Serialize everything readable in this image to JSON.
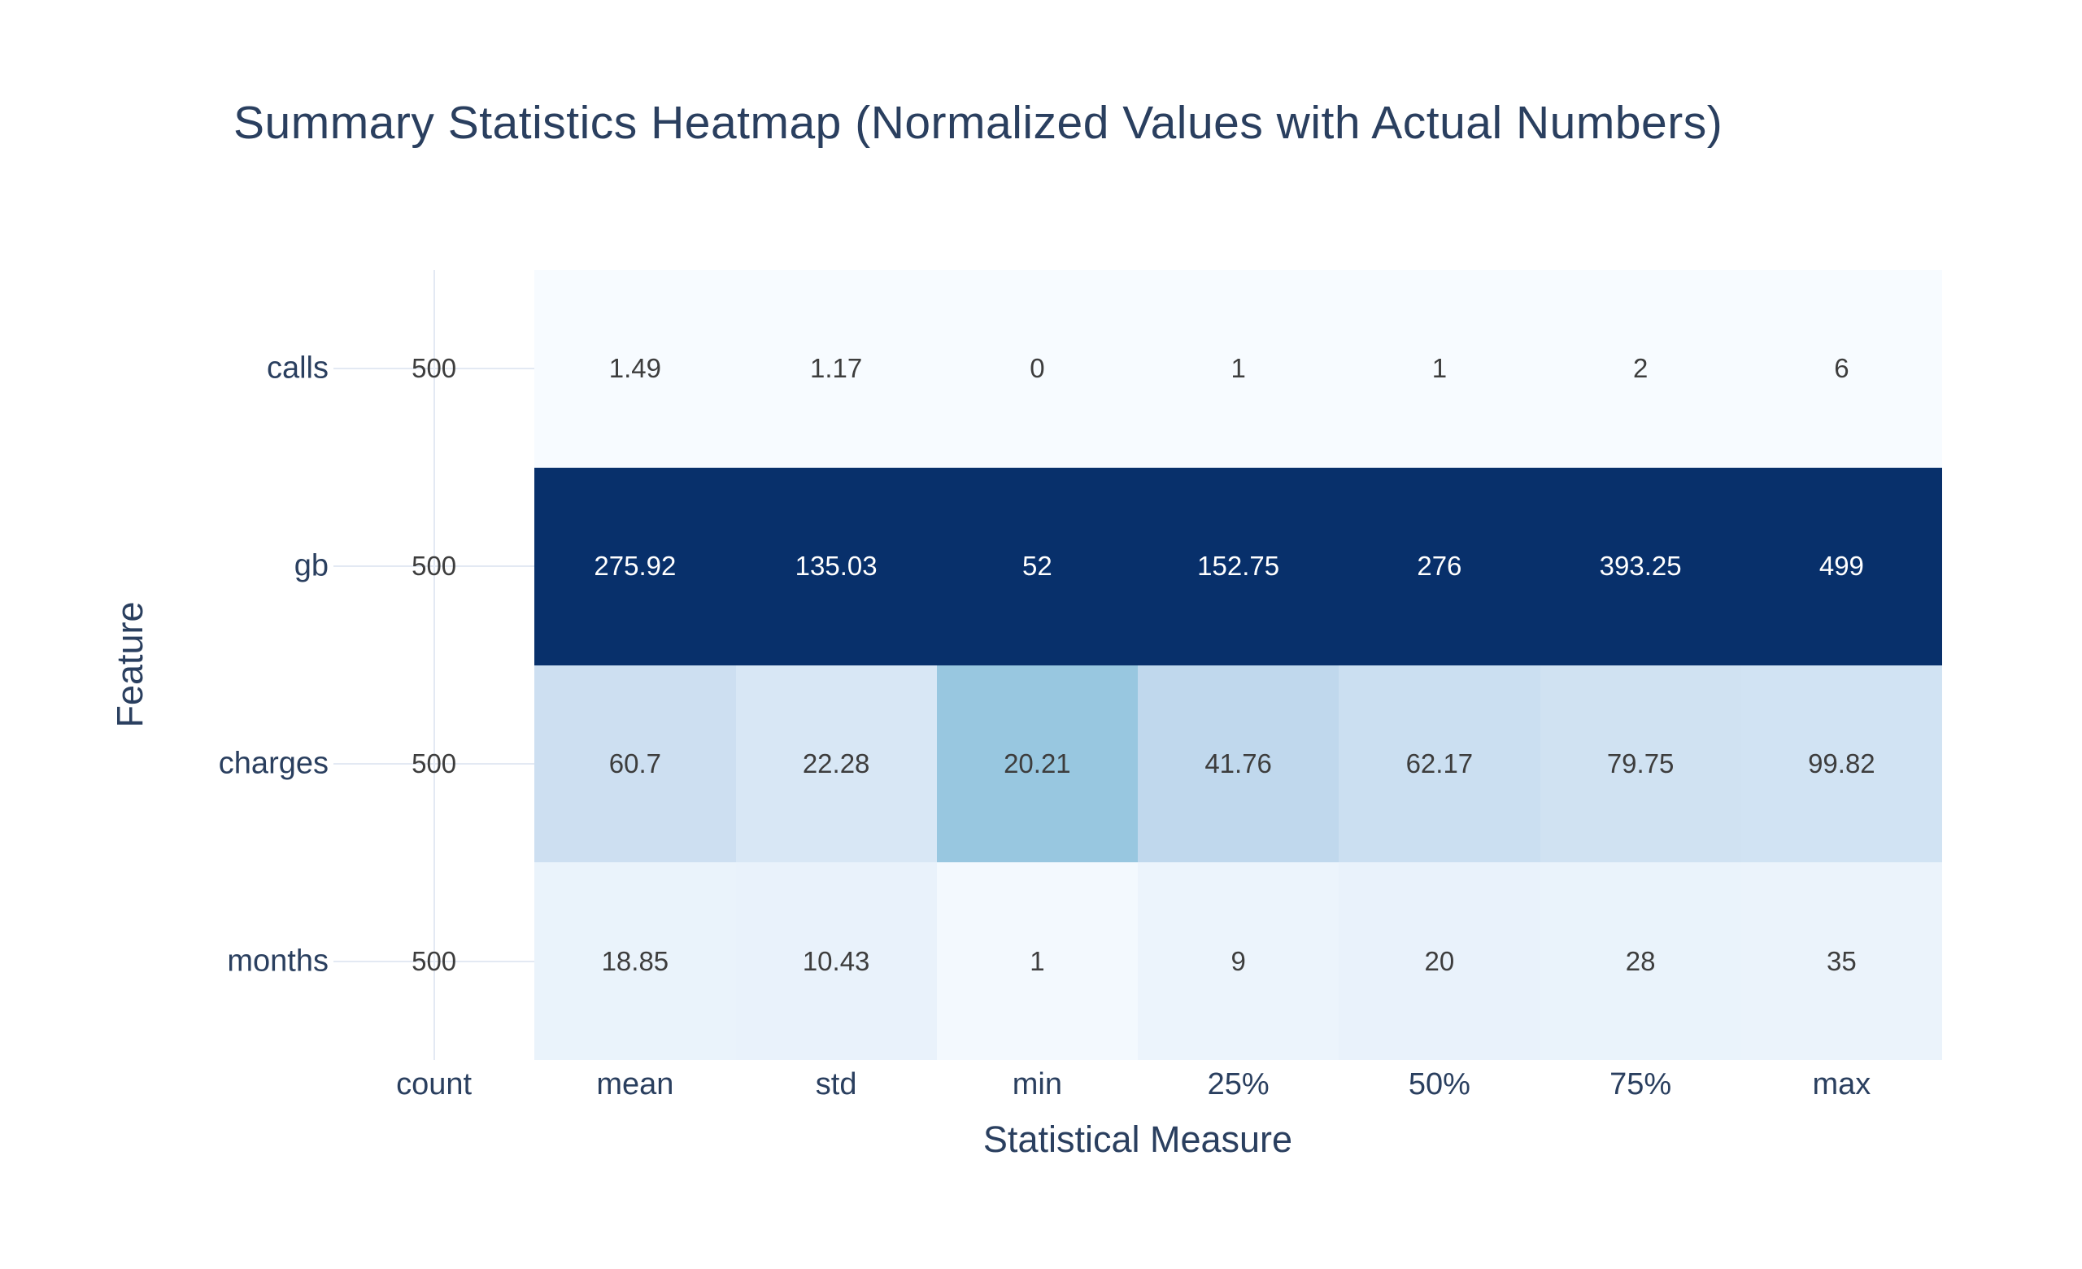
{
  "colors": {
    "heading_text": "#2a3f5f",
    "annotation_dark": "#3d3d3d",
    "annotation_light": "#ffffff",
    "gridline": "#e3e9f3",
    "background": "#ffffff"
  },
  "chart_data": {
    "type": "heatmap",
    "title": "Summary Statistics Heatmap (Normalized Values with Actual Numbers)",
    "xlabel": "Statistical Measure",
    "ylabel": "Feature",
    "rows": [
      "calls",
      "gb",
      "charges",
      "months"
    ],
    "columns": [
      "count",
      "mean",
      "std",
      "min",
      "25%",
      "50%",
      "75%",
      "max"
    ],
    "cell_text": [
      [
        "500",
        "1.49",
        "1.17",
        "0",
        "1",
        "1",
        "2",
        "6"
      ],
      [
        "500",
        "275.92",
        "135.03",
        "52",
        "152.75",
        "276",
        "393.25",
        "499"
      ],
      [
        "500",
        "60.7",
        "22.28",
        "20.21",
        "41.76",
        "62.17",
        "79.75",
        "99.82"
      ],
      [
        "500",
        "18.85",
        "10.43",
        "1",
        "9",
        "20",
        "28",
        "35"
      ]
    ],
    "values": [
      [
        500,
        1.49,
        1.17,
        0,
        1,
        1,
        2,
        6
      ],
      [
        500,
        275.92,
        135.03,
        52,
        152.75,
        276,
        393.25,
        499
      ],
      [
        500,
        60.7,
        22.28,
        20.21,
        41.76,
        62.17,
        79.75,
        99.82
      ],
      [
        500,
        18.85,
        10.43,
        1,
        9,
        20,
        28,
        35
      ]
    ],
    "z_normalized_per_column": [
      [
        null,
        0,
        0,
        0,
        0,
        0,
        0,
        0
      ],
      [
        null,
        1,
        1,
        1,
        1,
        1,
        1,
        1
      ],
      [
        null,
        0.2158,
        0.1577,
        0.3887,
        0.2686,
        0.2224,
        0.1987,
        0.1903
      ],
      [
        null,
        0.0633,
        0.0692,
        0.0192,
        0.0527,
        0.0691,
        0.0664,
        0.0588
      ]
    ],
    "colorscale": [
      [
        0,
        "#f7fbff"
      ],
      [
        0.125,
        "#deebf7"
      ],
      [
        0.25,
        "#c6dbef"
      ],
      [
        0.375,
        "#9ecae1"
      ],
      [
        0.5,
        "#6baed6"
      ],
      [
        0.625,
        "#4292c6"
      ],
      [
        0.75,
        "#2171b5"
      ],
      [
        0.875,
        "#08519c"
      ],
      [
        1,
        "#08306b"
      ]
    ],
    "grid": true,
    "legend_position": "none",
    "ylim": "categories calls..months",
    "xlim": "categories count..max"
  }
}
